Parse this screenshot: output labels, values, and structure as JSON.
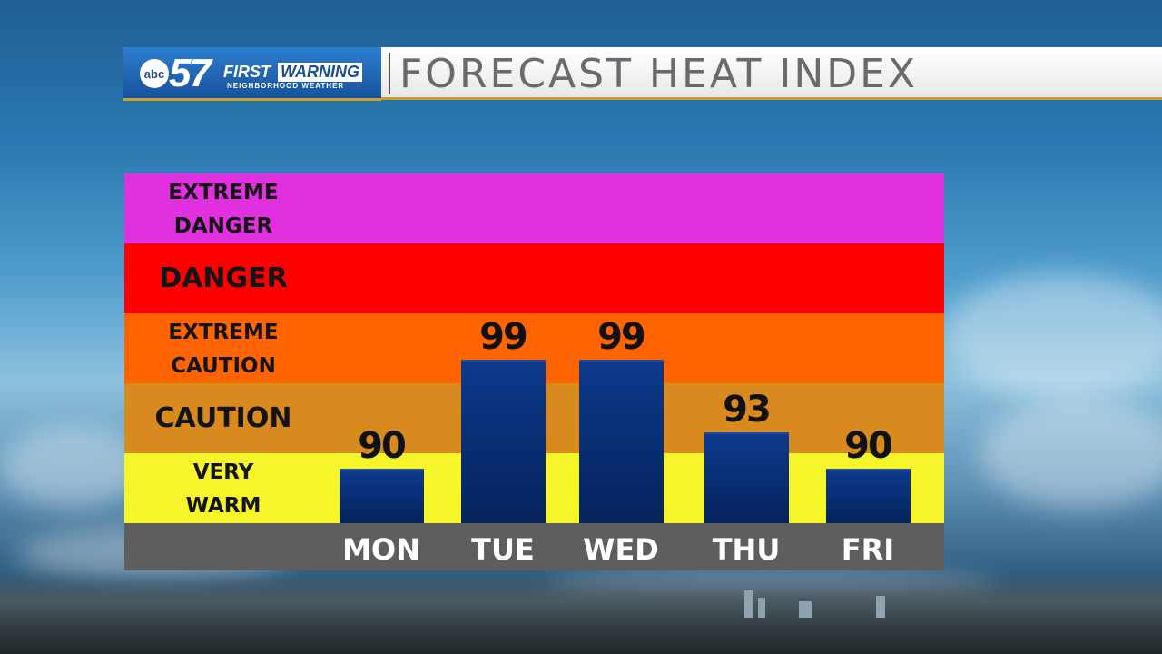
{
  "branding": {
    "abc": "abc",
    "channel": "57",
    "first": "FIRST",
    "warning": "WARNING",
    "subtitle": "NEIGHBORHOOD WEATHER"
  },
  "header": {
    "title": "FORECAST HEAT INDEX"
  },
  "colors": {
    "extreme_danger": "#e030e0",
    "danger": "#ff0000",
    "extreme_caution": "#ff6400",
    "caution": "#d88a1e",
    "very_warm": "#f5f52a",
    "bar": "#0a2f78",
    "axis": "#5e5e5e"
  },
  "chart_data": {
    "type": "bar",
    "title": "FORECAST HEAT INDEX",
    "categories": [
      "MON",
      "TUE",
      "WED",
      "THU",
      "FRI"
    ],
    "values": [
      90,
      99,
      99,
      93,
      90
    ],
    "bands": [
      {
        "label_lines": [
          "EXTREME",
          "DANGER"
        ],
        "color_key": "extreme_danger"
      },
      {
        "label_lines": [
          "DANGER"
        ],
        "color_key": "danger"
      },
      {
        "label_lines": [
          "EXTREME",
          "CAUTION"
        ],
        "color_key": "extreme_caution"
      },
      {
        "label_lines": [
          "CAUTION"
        ],
        "color_key": "caution"
      },
      {
        "label_lines": [
          "VERY",
          "WARM"
        ],
        "color_key": "very_warm"
      }
    ]
  }
}
